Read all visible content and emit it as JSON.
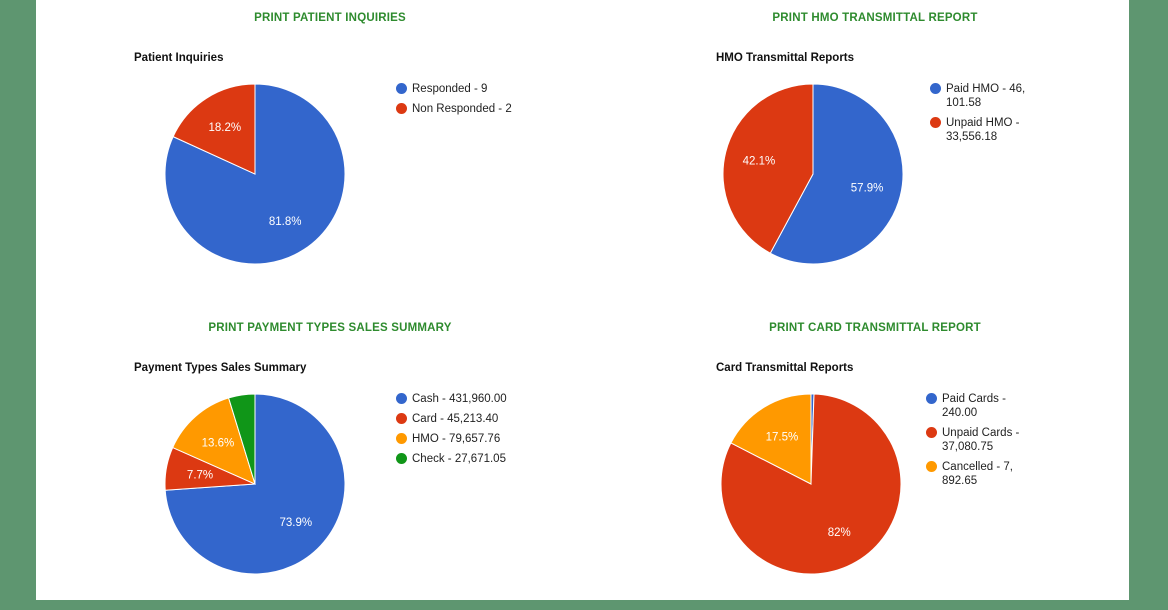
{
  "colors": {
    "blue": "#3366cc",
    "red": "#dc3912",
    "orange": "#ff9900",
    "green": "#109618",
    "link": "#2e8b2e",
    "frame": "#5e9670"
  },
  "sections": {
    "patient": {
      "link": "PRINT PATIENT INQUIRIES",
      "title": "Patient Inquiries",
      "legend": [
        "Responded - 9",
        "Non Responded - 2"
      ],
      "labels": [
        "81.8%",
        "18.2%"
      ]
    },
    "hmo": {
      "link": "PRINT HMO TRANSMITTAL REPORT",
      "title": "HMO Transmittal Reports",
      "legend": [
        [
          "Paid HMO - 46,",
          "101.58"
        ],
        [
          "Unpaid HMO -",
          "33,556.18"
        ]
      ],
      "labels": [
        "57.9%",
        "42.1%"
      ]
    },
    "payment": {
      "link": "PRINT PAYMENT TYPES SALES SUMMARY",
      "title": "Payment Types Sales Summary",
      "legend": [
        "Cash - 431,960.00",
        "Card - 45,213.40",
        "HMO - 79,657.76",
        "Check - 27,671.05"
      ],
      "labels": [
        "73.9%",
        "7.7%",
        "13.6%",
        ""
      ]
    },
    "card": {
      "link": "PRINT CARD TRANSMITTAL REPORT",
      "title": "Card Transmittal Reports",
      "legend": [
        [
          "Paid Cards -",
          "240.00"
        ],
        [
          "Unpaid Cards -",
          "37,080.75"
        ],
        [
          "Cancelled - 7,",
          "892.65"
        ]
      ],
      "labels": [
        "",
        "82%",
        "17.5%"
      ]
    }
  },
  "chart_data": [
    {
      "type": "pie",
      "title": "Patient Inquiries",
      "categories": [
        "Responded",
        "Non Responded"
      ],
      "values": [
        9,
        2
      ],
      "percent_labels": [
        "81.8%",
        "18.2%"
      ],
      "colors": [
        "#3366cc",
        "#dc3912"
      ],
      "legend_position": "right"
    },
    {
      "type": "pie",
      "title": "HMO Transmittal Reports",
      "categories": [
        "Paid HMO",
        "Unpaid HMO"
      ],
      "values": [
        46101.58,
        33556.18
      ],
      "percent_labels": [
        "57.9%",
        "42.1%"
      ],
      "colors": [
        "#3366cc",
        "#dc3912"
      ],
      "legend_position": "right"
    },
    {
      "type": "pie",
      "title": "Payment Types Sales Summary",
      "categories": [
        "Cash",
        "Card",
        "HMO",
        "Check"
      ],
      "values": [
        431960.0,
        45213.4,
        79657.76,
        27671.05
      ],
      "percent_labels": [
        "73.9%",
        "7.7%",
        "13.6%",
        ""
      ],
      "colors": [
        "#3366cc",
        "#dc3912",
        "#ff9900",
        "#109618"
      ],
      "legend_position": "right"
    },
    {
      "type": "pie",
      "title": "Card Transmittal Reports",
      "categories": [
        "Paid Cards",
        "Unpaid Cards",
        "Cancelled"
      ],
      "values": [
        240.0,
        37080.75,
        7892.65
      ],
      "percent_labels": [
        "",
        "82%",
        "17.5%"
      ],
      "colors": [
        "#3366cc",
        "#dc3912",
        "#ff9900"
      ],
      "legend_position": "right"
    }
  ]
}
